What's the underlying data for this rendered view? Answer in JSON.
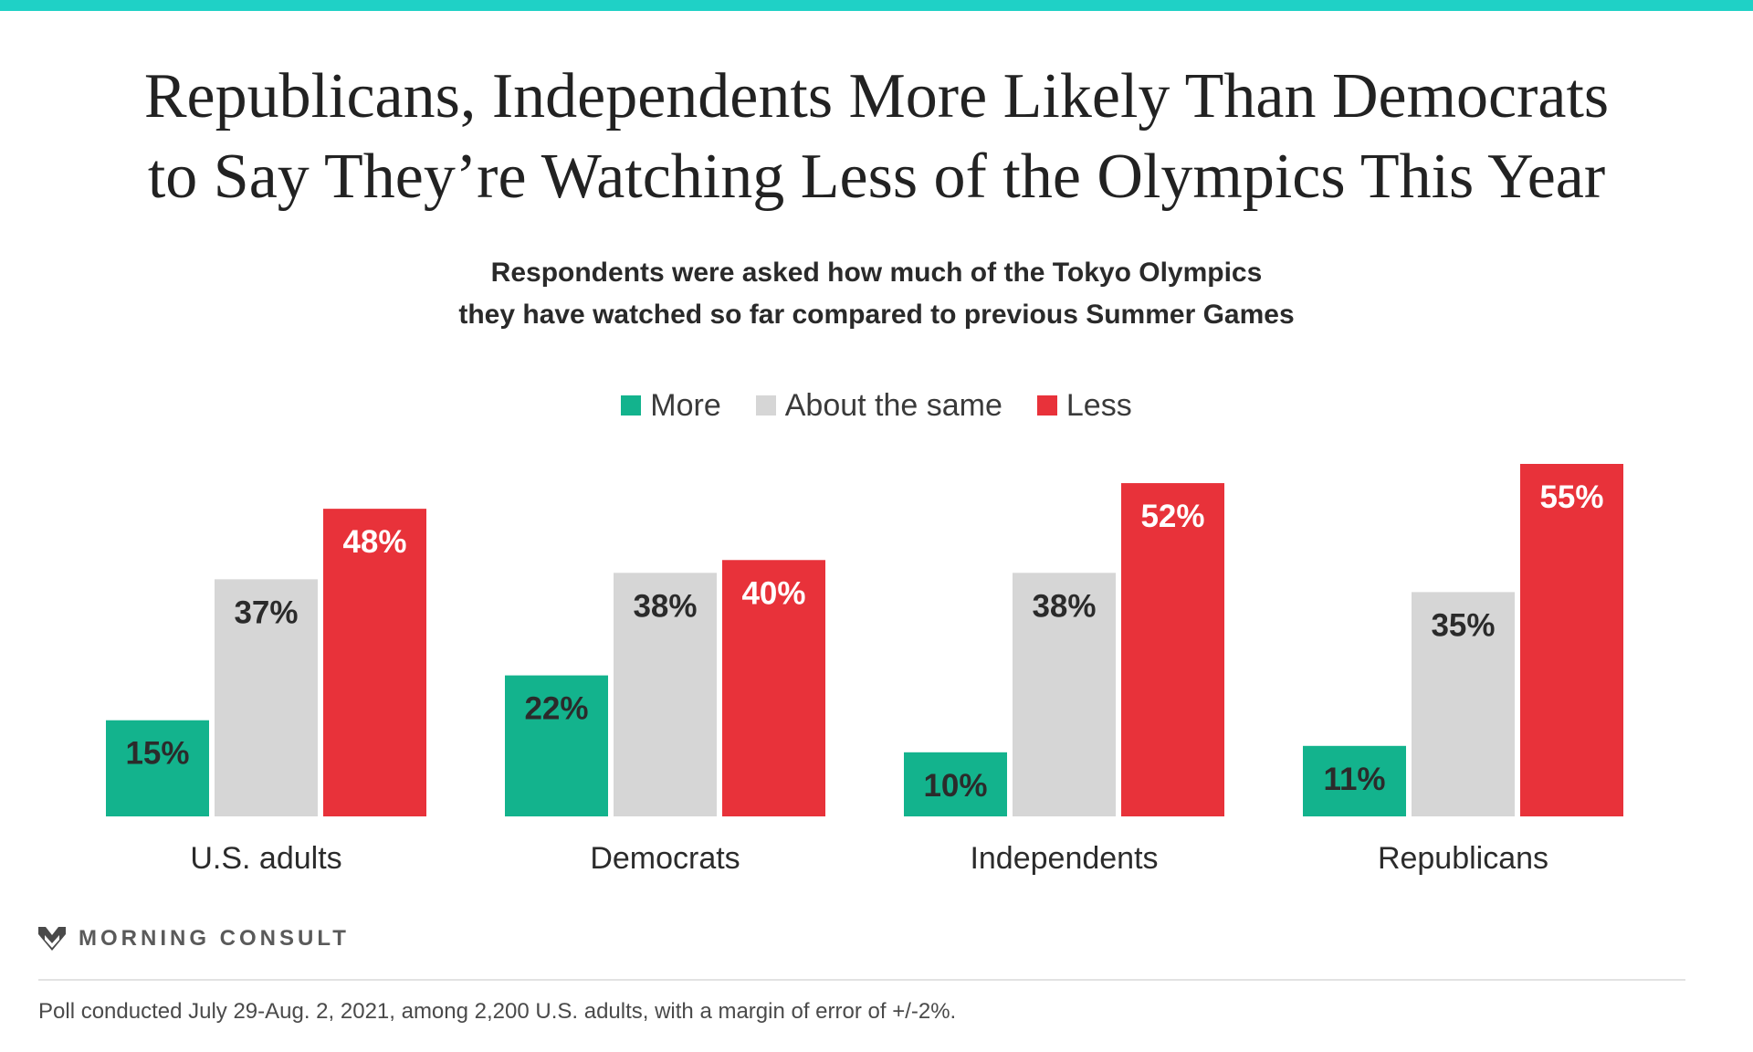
{
  "header": {
    "title_line1": "Republicans, Independents More Likely Than Democrats",
    "title_line2": "to Say They’re Watching Less of the Olympics This Year",
    "subtitle_line1": "Respondents were asked how much of the Tokyo Olympics",
    "subtitle_line2": "they have watched so far compared to previous Summer Games"
  },
  "legend": [
    {
      "label": "More",
      "color": "#13b38d"
    },
    {
      "label": "About the same",
      "color": "#d6d6d6"
    },
    {
      "label": "Less",
      "color": "#e8323a"
    }
  ],
  "chart_data": {
    "type": "bar",
    "categories": [
      "U.S. adults",
      "Democrats",
      "Independents",
      "Republicans"
    ],
    "series": [
      {
        "name": "More",
        "values": [
          15,
          22,
          10,
          11
        ],
        "color": "#13b38d",
        "label_color": "#2b2b2b"
      },
      {
        "name": "About the same",
        "values": [
          37,
          38,
          38,
          35
        ],
        "color": "#d6d6d6",
        "label_color": "#2b2b2b"
      },
      {
        "name": "Less",
        "values": [
          48,
          40,
          52,
          55
        ],
        "color": "#e8323a",
        "label_color": "#ffffff"
      }
    ],
    "value_suffix": "%",
    "ylim": [
      0,
      55
    ],
    "grid": false,
    "legend_position": "top-center"
  },
  "branding": {
    "logo_text": "MORNING CONSULT",
    "logo_mark": "®"
  },
  "footnote": "Poll conducted July 29-Aug. 2, 2021, among 2,200 U.S. adults, with a margin of error of +/-2%."
}
